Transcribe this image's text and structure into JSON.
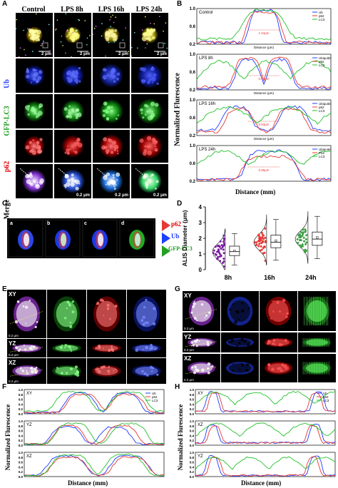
{
  "panels": {
    "A": "A",
    "B": "B",
    "C": "C",
    "D": "D",
    "E": "E",
    "F": "F",
    "G": "G",
    "H": "H"
  },
  "panelA": {
    "columns": [
      "Control",
      "LPS 8h",
      "LPS 16h",
      "LPS 24h"
    ],
    "rows": [
      "Ub",
      "GFP-LC3",
      "p62",
      "Merge"
    ],
    "scale_top": "2 μm",
    "scale_merge": "0.2 μm"
  },
  "panelB": {
    "ylabel": "Normalized Flurescence",
    "xlabel": "Distance (mm)",
    "subplots": [
      {
        "title": "Control",
        "legend": [
          "Ub",
          "p62",
          "LC3"
        ],
        "xlabel_small": "Distance (μm)",
        "annot": "1.04μm"
      },
      {
        "title": "LPS 8h",
        "legend": [
          "Ubiquitin",
          "p62",
          "LC3"
        ],
        "xlabel_small": "Distance (μm)",
        "annot": "0.71μm"
      },
      {
        "title": "LPS 16h",
        "legend": [
          "Ubiquitin",
          "p62",
          "LC3"
        ],
        "xlabel_small": "Distance (μm)",
        "annot": "0.83μm"
      },
      {
        "title": "LPS 24h",
        "legend": [
          "Ubiquitin",
          "P62",
          "LC3"
        ],
        "xlabel_small": "",
        "annot": "0.86μm"
      }
    ],
    "yticks": [
      "1.0",
      "0.6",
      "0.2"
    ]
  },
  "panelC": {
    "cells": [
      "a",
      "b",
      "c",
      "d"
    ],
    "legend": [
      "p62",
      "Ub",
      "GFP-LC3"
    ]
  },
  "panelD": {
    "chart_data": {
      "type": "scatter",
      "categories": [
        "8h",
        "16h",
        "24h"
      ],
      "ylabel": "ALIS Diameter (μm)",
      "ylim": [
        0,
        4
      ],
      "yticks": [
        0,
        1,
        2,
        3,
        4
      ],
      "colors": [
        "#7b1fa2",
        "#e53935",
        "#43a047"
      ],
      "box": [
        {
          "q1": 0.9,
          "median": 1.15,
          "q3": 1.5,
          "min": 0.3,
          "max": 2.3,
          "mean": 1.2
        },
        {
          "q1": 1.4,
          "median": 1.75,
          "q3": 2.2,
          "min": 0.6,
          "max": 3.2,
          "mean": 1.85
        },
        {
          "q1": 1.55,
          "median": 1.95,
          "q3": 2.4,
          "min": 0.7,
          "max": 3.4,
          "mean": 2.05
        }
      ]
    }
  },
  "panelE": {
    "rows": [
      "XY",
      "YZ",
      "XZ"
    ],
    "scale": "0.2 μm"
  },
  "panelG": {
    "rows": [
      "XY",
      "YZ",
      "XZ"
    ],
    "scale": "0.2 μm"
  },
  "panelF": {
    "ylabel": "Normalized Flurescence",
    "xlabel": "Distance (mm)",
    "subplots": [
      {
        "title": "XY"
      },
      {
        "title": "YZ"
      },
      {
        "title": "XZ"
      }
    ],
    "legend": [
      "Ub",
      "p62",
      "LC3"
    ],
    "yticks": [
      "1.0",
      "0.8",
      "0.6",
      "0.4",
      "0.2",
      "0.0"
    ]
  },
  "panelH": {
    "ylabel": "Normalized Flurescence",
    "xlabel": "Distance (mm)",
    "subplots": [
      {
        "title": "XY"
      },
      {
        "title": "XZ"
      },
      {
        "title": "YZ"
      }
    ],
    "legend": [
      "Ub",
      "p62",
      "LC3"
    ],
    "yticks": [
      "1.0",
      "0.8",
      "0.6",
      "0.4",
      "0.2",
      "0.0"
    ]
  }
}
